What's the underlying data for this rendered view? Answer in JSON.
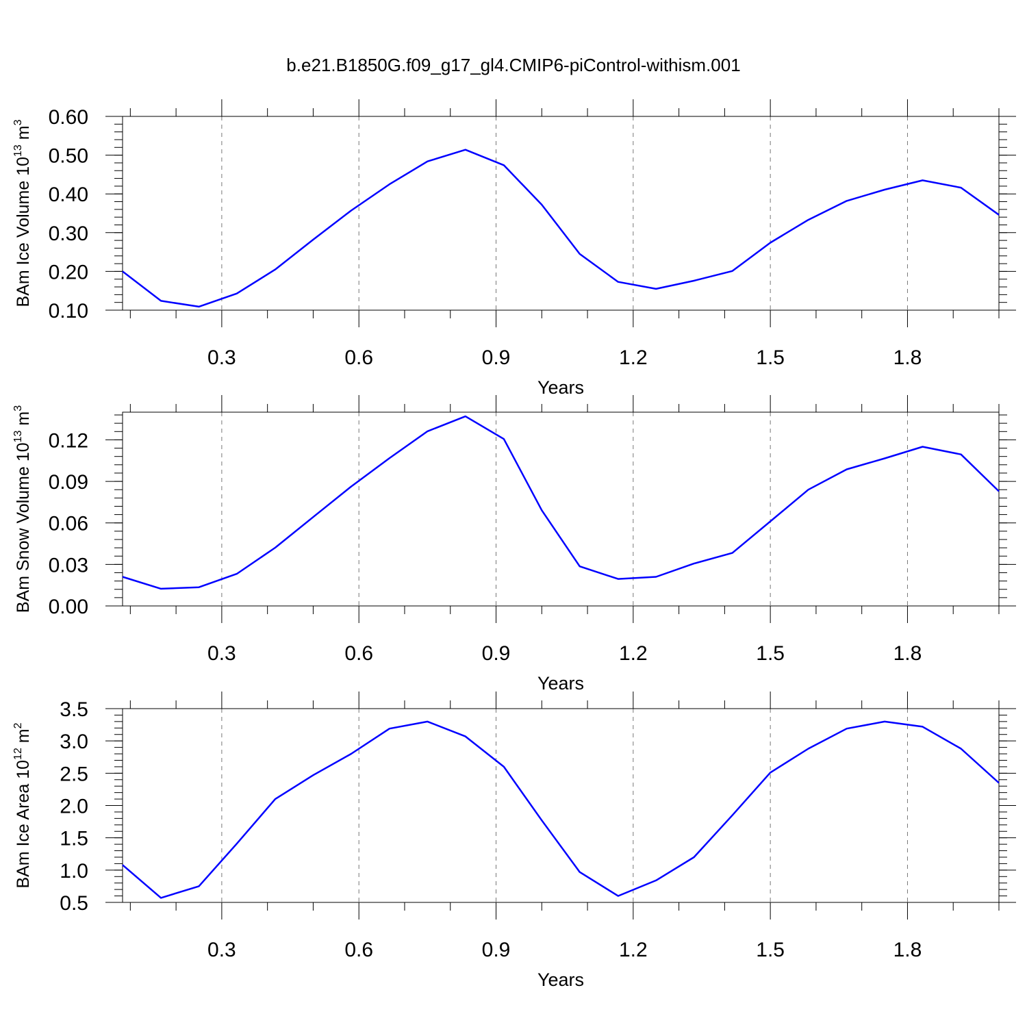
{
  "figure": {
    "title": "b.e21.B1850G.f09_g17_gl4.CMIP6-piControl-withism.001",
    "line_color": "#0000ff"
  },
  "chart_data": [
    {
      "type": "line",
      "xlabel": "Years",
      "ylabel": {
        "text": "BAm Ice Volume 10",
        "sup1": "13",
        "mid": " m",
        "sup2": "3"
      },
      "xlim": [
        0.083,
        2.0
      ],
      "ylim": [
        0.1,
        0.6
      ],
      "xticks": [
        0.3,
        0.6,
        0.9,
        1.2,
        1.5,
        1.8
      ],
      "xtick_labels": [
        "0.3",
        "0.6",
        "0.9",
        "1.2",
        "1.5",
        "1.8"
      ],
      "yticks": [
        0.1,
        0.2,
        0.3,
        0.4,
        0.5,
        0.6
      ],
      "ytick_labels": [
        "0.10",
        "0.20",
        "0.30",
        "0.40",
        "0.50",
        "0.60"
      ],
      "grid": "vertical-dashed",
      "x": [
        0.083,
        0.167,
        0.25,
        0.333,
        0.417,
        0.5,
        0.583,
        0.667,
        0.75,
        0.833,
        0.917,
        1.0,
        1.083,
        1.167,
        1.25,
        1.333,
        1.417,
        1.5,
        1.583,
        1.667,
        1.75,
        1.833,
        1.917,
        2.0
      ],
      "y": [
        0.2,
        0.124,
        0.109,
        0.143,
        0.205,
        0.282,
        0.357,
        0.425,
        0.484,
        0.514,
        0.474,
        0.372,
        0.245,
        0.173,
        0.155,
        0.176,
        0.201,
        0.274,
        0.333,
        0.382,
        0.411,
        0.435,
        0.416,
        0.346
      ]
    },
    {
      "type": "line",
      "xlabel": "Years",
      "ylabel": {
        "text": "BAm Snow Volume 10",
        "sup1": "13",
        "mid": " m",
        "sup2": "3"
      },
      "xlim": [
        0.083,
        2.0
      ],
      "ylim": [
        0.0,
        0.14
      ],
      "xticks": [
        0.3,
        0.6,
        0.9,
        1.2,
        1.5,
        1.8
      ],
      "xtick_labels": [
        "0.3",
        "0.6",
        "0.9",
        "1.2",
        "1.5",
        "1.8"
      ],
      "yticks": [
        0.0,
        0.03,
        0.06,
        0.09,
        0.12
      ],
      "ytick_labels": [
        "0.00",
        "0.03",
        "0.06",
        "0.09",
        "0.12"
      ],
      "grid": "vertical-dashed",
      "x": [
        0.083,
        0.167,
        0.25,
        0.333,
        0.417,
        0.5,
        0.583,
        0.667,
        0.75,
        0.833,
        0.917,
        1.0,
        1.083,
        1.167,
        1.25,
        1.333,
        1.417,
        1.5,
        1.583,
        1.667,
        1.75,
        1.833,
        1.917,
        2.0
      ],
      "y": [
        0.021,
        0.0124,
        0.0135,
        0.0232,
        0.0421,
        0.0642,
        0.0863,
        0.1068,
        0.1262,
        0.137,
        0.1206,
        0.0691,
        0.0286,
        0.0195,
        0.021,
        0.0306,
        0.0383,
        0.0611,
        0.084,
        0.0987,
        0.1066,
        0.115,
        0.1095,
        0.0828
      ]
    },
    {
      "type": "line",
      "xlabel": "Years",
      "ylabel": {
        "text": "BAm Ice Area 10",
        "sup1": "12",
        "mid": " m",
        "sup2": "2"
      },
      "xlim": [
        0.083,
        2.0
      ],
      "ylim": [
        0.5,
        3.5
      ],
      "xticks": [
        0.3,
        0.6,
        0.9,
        1.2,
        1.5,
        1.8
      ],
      "xtick_labels": [
        "0.3",
        "0.6",
        "0.9",
        "1.2",
        "1.5",
        "1.8"
      ],
      "yticks": [
        0.5,
        1.0,
        1.5,
        2.0,
        2.5,
        3.0,
        3.5
      ],
      "ytick_labels": [
        "0.5",
        "1.0",
        "1.5",
        "2.0",
        "2.5",
        "3.0",
        "3.5"
      ],
      "grid": "vertical-dashed",
      "x": [
        0.083,
        0.167,
        0.25,
        0.333,
        0.417,
        0.5,
        0.583,
        0.667,
        0.75,
        0.833,
        0.917,
        1.0,
        1.083,
        1.167,
        1.25,
        1.333,
        1.417,
        1.5,
        1.583,
        1.667,
        1.75,
        1.833,
        1.917,
        2.0
      ],
      "y": [
        1.08,
        0.57,
        0.75,
        1.41,
        2.1,
        2.47,
        2.8,
        3.19,
        3.3,
        3.07,
        2.6,
        1.77,
        0.97,
        0.6,
        0.84,
        1.2,
        1.85,
        2.51,
        2.88,
        3.19,
        3.3,
        3.22,
        2.88,
        2.35
      ]
    }
  ]
}
